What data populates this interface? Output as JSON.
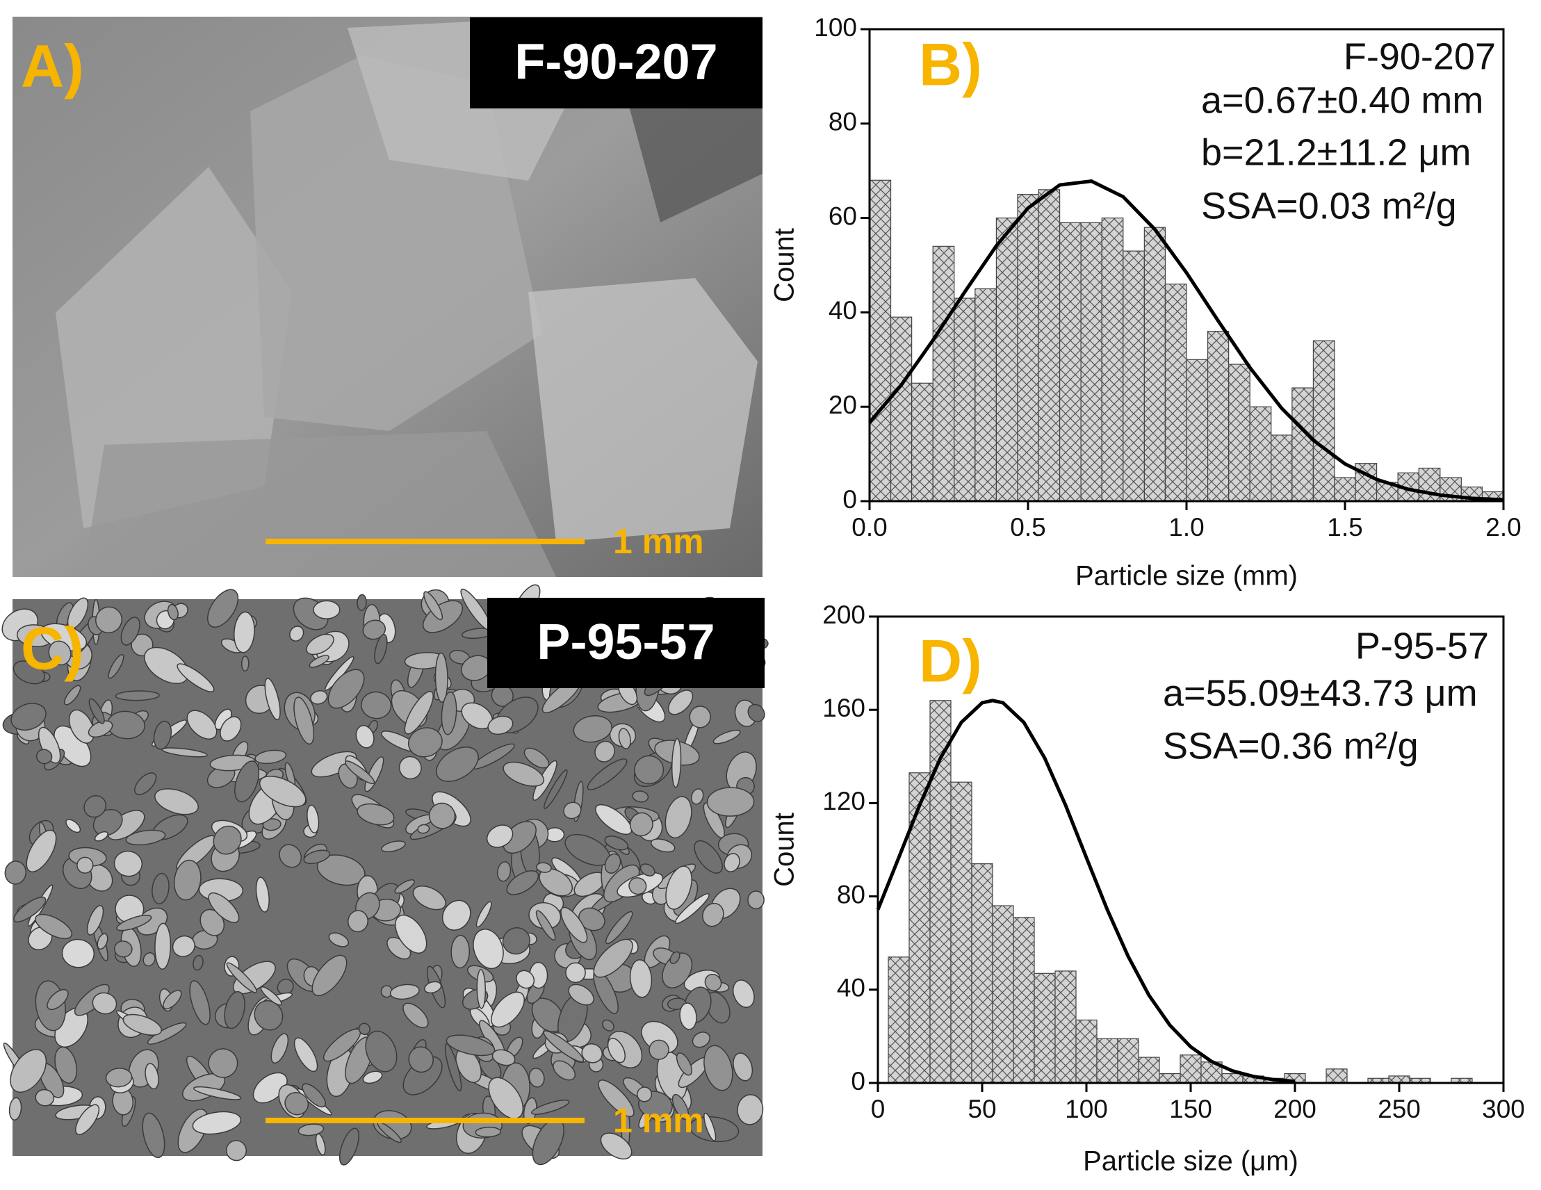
{
  "panels": [
    {
      "letter": "A)",
      "sample": "F-90-207",
      "scale_bar": "1 mm"
    },
    {
      "letter": "C)",
      "sample": "P-95-57",
      "scale_bar": "1 mm"
    }
  ],
  "chart_data": [
    {
      "type": "histogram",
      "panel": "B)",
      "annotations": [
        "F-90-207",
        "a=0.67±0.40 mm",
        "b=21.2±11.2 μm",
        "SSA=0.03 m²/g"
      ],
      "x_label": "Particle size (mm)",
      "y_label": "Count",
      "bins": [
        0,
        0.067,
        0.133,
        0.2,
        0.267,
        0.333,
        0.4,
        0.467,
        0.533,
        0.6,
        0.667,
        0.733,
        0.8,
        0.867,
        0.933,
        1.0,
        1.067,
        1.133,
        1.2,
        1.267,
        1.333,
        1.4,
        1.467,
        1.533,
        1.6,
        1.667,
        1.733,
        1.8,
        1.867,
        1.933,
        2.0
      ],
      "values": [
        68,
        39,
        25,
        54,
        43,
        45,
        60,
        65,
        66,
        59,
        59,
        60,
        53,
        58,
        46,
        30,
        36,
        29,
        20,
        14,
        24,
        34,
        5,
        8,
        4,
        6,
        7,
        5,
        3,
        2
      ],
      "color": "#d4d4d4",
      "fit": {
        "x": [
          0,
          0.1,
          0.2,
          0.3,
          0.4,
          0.5,
          0.6,
          0.7,
          0.8,
          0.9,
          1.0,
          1.1,
          1.2,
          1.3,
          1.4,
          1.5,
          1.6,
          1.7,
          1.8,
          1.9,
          2.0
        ],
        "values": [
          16.7,
          24.6,
          34.1,
          44.3,
          54.1,
          62.1,
          67.0,
          67.8,
          64.5,
          57.6,
          48.4,
          38.2,
          28.3,
          19.7,
          12.9,
          7.9,
          4.6,
          2.5,
          1.3,
          0.6,
          0.3
        ],
        "color": "#000000"
      },
      "xlim": [
        0,
        2.0
      ],
      "ylim": [
        0,
        100
      ],
      "xticks": [
        {
          "value": 0,
          "label": "0.0"
        },
        0.5,
        {
          "value": 1,
          "label": "1.0"
        },
        1.5,
        {
          "value": 2,
          "label": "2.0"
        }
      ],
      "yticks": [
        0,
        20,
        40,
        60,
        80,
        100
      ]
    },
    {
      "type": "histogram",
      "panel": "D)",
      "annotations": [
        "P-95-57",
        "a=55.09±43.73 μm",
        "SSA=0.36 m²/g"
      ],
      "x_label": "Particle size (μm)",
      "y_label": "Count",
      "bins": [
        5,
        15,
        25,
        35,
        45,
        55,
        65,
        75,
        85,
        95,
        105,
        115,
        125,
        135,
        145,
        155,
        165,
        175,
        185,
        195,
        205,
        215,
        225,
        235,
        245,
        255,
        265,
        275,
        285
      ],
      "values": [
        54,
        133,
        164,
        129,
        94,
        76,
        71,
        47,
        48,
        27,
        19,
        19,
        11,
        4,
        12,
        9,
        4,
        3,
        2,
        4,
        0,
        6,
        0,
        2,
        3,
        2,
        0,
        2
      ],
      "color": "#d4d4d4",
      "fit": {
        "x": [
          0,
          10,
          20,
          30,
          40,
          50,
          55,
          60,
          70,
          80,
          90,
          100,
          110,
          120,
          130,
          140,
          150,
          160,
          170,
          180,
          190,
          200
        ],
        "values": [
          74.3,
          96.6,
          119.1,
          139.3,
          154.6,
          163.0,
          164,
          163.0,
          154.6,
          139.3,
          119.1,
          96.6,
          74.3,
          54.3,
          37.6,
          24.8,
          15.5,
          9.2,
          5.2,
          2.8,
          1.4,
          0.7
        ],
        "color": "#000000"
      },
      "xlim": [
        0,
        300
      ],
      "ylim": [
        0,
        200
      ],
      "xticks": [
        0,
        50,
        100,
        150,
        200,
        250,
        300
      ],
      "yticks": [
        0,
        40,
        80,
        120,
        160,
        200
      ]
    }
  ]
}
